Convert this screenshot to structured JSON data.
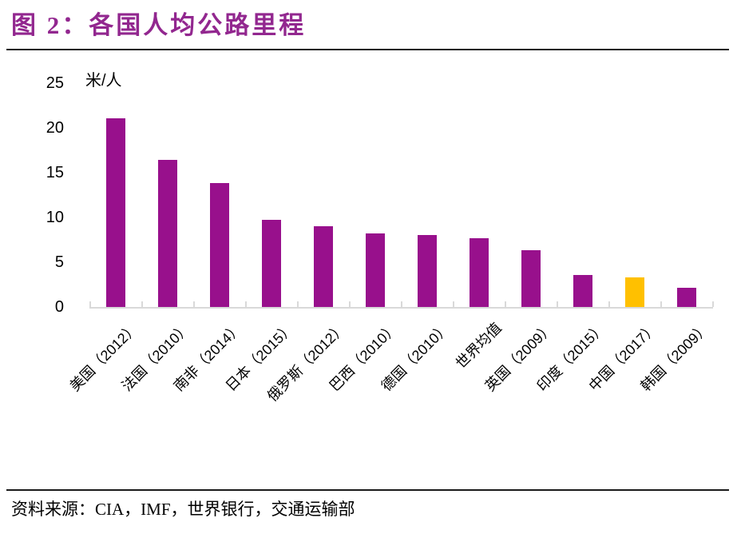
{
  "figure": {
    "title": "图 2：各国人均公路里程",
    "source": "资料来源：CIA，IMF，世界银行，交通运输部"
  },
  "chart_data": {
    "type": "bar",
    "title": "各国人均公路里程",
    "unit_label": "米/人",
    "categories": [
      "美国（2012）",
      "法国（2010）",
      "南非（2014）",
      "日本（2015）",
      "俄罗斯（2012）",
      "巴西（2010）",
      "德国（2010）",
      "世界均值",
      "英国（2009）",
      "印度（2015）",
      "中国（2017）",
      "韩国（2009）"
    ],
    "values": [
      21.1,
      16.4,
      13.8,
      9.7,
      9.0,
      8.2,
      8.0,
      7.7,
      6.3,
      3.6,
      3.3,
      2.1
    ],
    "ylim": [
      0,
      25
    ],
    "yticks": [
      0,
      5,
      10,
      15,
      20,
      25
    ],
    "grid": false,
    "legend_position": "none",
    "bar_color": "#98108C",
    "highlight_index": 10,
    "highlight_color": "#FFC000",
    "axis_color": "#D9D9D9",
    "title_color": "#92278F"
  }
}
